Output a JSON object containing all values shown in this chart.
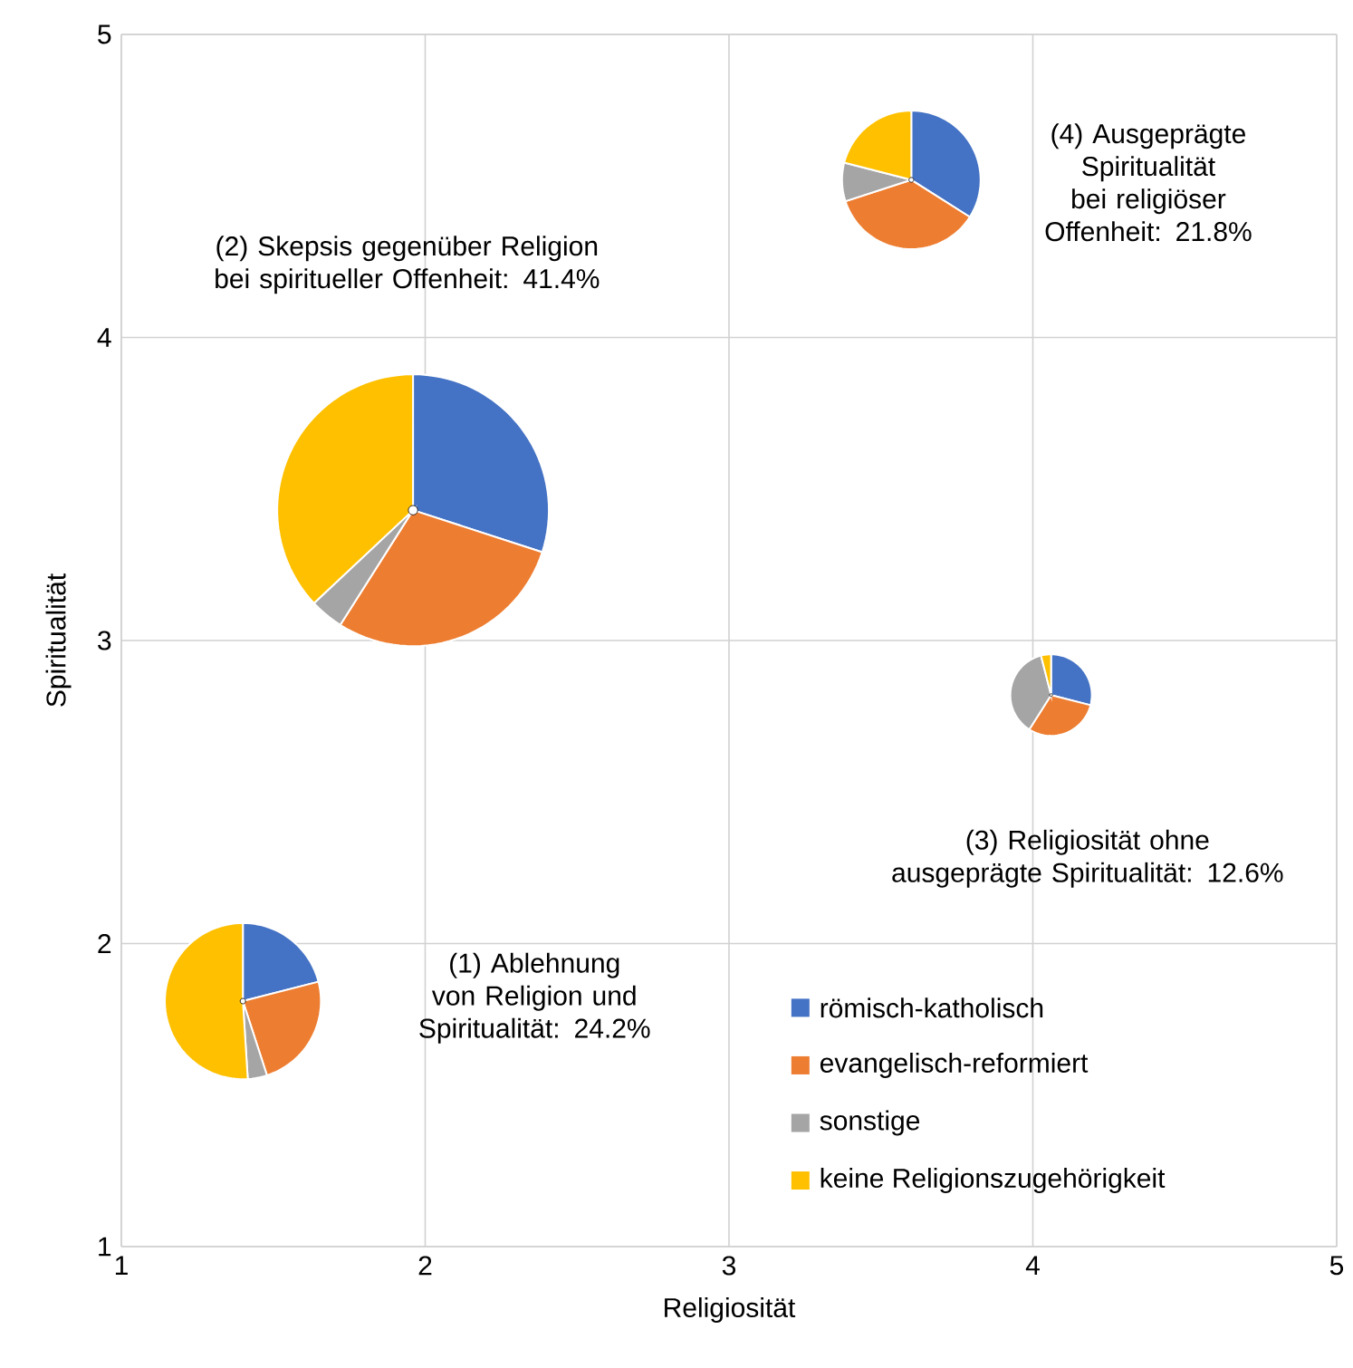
{
  "chart_data": [
    {
      "type": "bubble",
      "xlabel": "Religiosität",
      "ylabel": "Spiritualität",
      "x": [
        1.4,
        1.96,
        4.06,
        3.6
      ],
      "values": [
        1.81,
        3.43,
        2.82,
        4.52
      ],
      "sizes": [
        0.33,
        1,
        0.09,
        0.26
      ],
      "xlim": [
        1,
        5
      ],
      "ylim": [
        1,
        5
      ],
      "xticks": [
        1,
        2,
        3,
        4,
        5
      ],
      "yticks": [
        1,
        2,
        3,
        4,
        5
      ],
      "grid": true,
      "annotations": [
        "(1) Ablehnung von Religion und Spiritualität: 24.2%",
        "(2) Skepsis gegenüber Religion bei spiritueller Offenheit: 41.4%",
        "(3) Religiosität ohne ausgeprägte Spiritualität: 12.6%",
        "(4) Ausgeprägte Spiritualität bei religiöser Offenheit: 21.8%"
      ]
    },
    {
      "type": "pie",
      "categories": [
        "römisch-katholisch",
        "evangelisch-reformiert",
        "sonstige",
        "keine Religionszugehörigkeit"
      ],
      "values": [
        21,
        24,
        4,
        51
      ],
      "colors": [
        "#4472c4",
        "#ed7d31",
        "#a5a5a5",
        "#ffc000"
      ],
      "legend": "bottom right"
    },
    {
      "type": "pie",
      "categories": [
        null,
        null,
        null,
        null
      ],
      "values": [
        30,
        29,
        4,
        37
      ],
      "colors": [
        "#4472c4",
        "#ed7d31",
        "#a5a5a5",
        "#ffc000"
      ]
    },
    {
      "type": "pie",
      "categories": [
        null,
        null,
        null,
        null
      ],
      "values": [
        29,
        30,
        37,
        4
      ],
      "colors": [
        "#4472c4",
        "#ed7d31",
        "#a5a5a5",
        "#ffc000"
      ]
    },
    {
      "type": "pie",
      "categories": [
        null,
        null,
        null,
        null
      ],
      "values": [
        34,
        36,
        9,
        21
      ],
      "colors": [
        "#4472c4",
        "#ed7d31",
        "#a5a5a5",
        "#ffc000"
      ]
    }
  ]
}
